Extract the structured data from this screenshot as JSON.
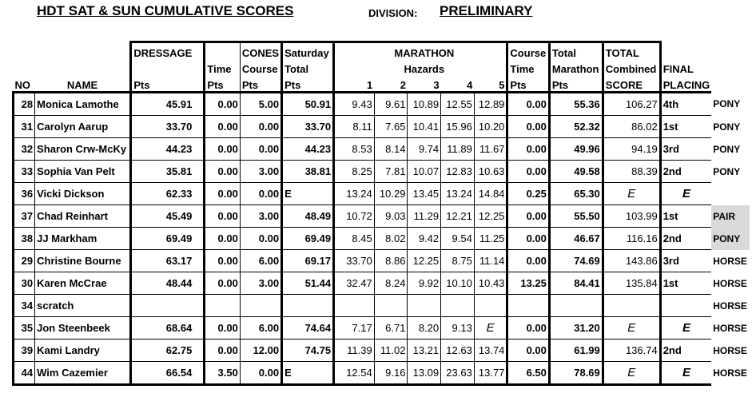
{
  "header": {
    "title": "HDT SAT & SUN  CUMULATIVE SCORES",
    "division_label": "DIVISION:",
    "division_value": "PRELIMINARY"
  },
  "columns": {
    "dressage_top": "DRESSAGE",
    "dressage_pts": "Pts",
    "time": "Time",
    "time_pts": "Pts",
    "cones_top": "CONES",
    "cones_course": "Course",
    "cones_pts": "Pts",
    "sat_1": "Saturday",
    "sat_2": "Total",
    "sat_pts": "Pts",
    "marathon": "MARATHON",
    "hazards": "Hazards",
    "h1": "1",
    "h2": "2",
    "h3": "3",
    "h4": "4",
    "h5": "5",
    "course_time_1": "Course",
    "course_time_2": "Time",
    "course_time_pts": "Pts",
    "total_marathon_1": "Total",
    "total_marathon_2": "Marathon",
    "total_marathon_pts": "Pts",
    "combined_1": "TOTAL",
    "combined_2": "Combined",
    "combined_3": "SCORE",
    "final_1": "FINAL",
    "final_2": "PLACING",
    "no": "NO",
    "name": "NAME"
  },
  "rows": [
    {
      "no": "28",
      "name": "Monica Lamothe",
      "dressage": "45.91",
      "time": "0.00",
      "cones": "5.00",
      "sat": "50.91",
      "h1": "9.43",
      "h2": "9.61",
      "h3": "10.89",
      "h4": "12.55",
      "h5": "12.89",
      "ctime": "0.00",
      "tmar": "55.36",
      "combined": "106.27",
      "placing": "4th",
      "type": "PONY"
    },
    {
      "no": "31",
      "name": "Carolyn Aarup",
      "dressage": "33.70",
      "time": "0.00",
      "cones": "0.00",
      "sat": "33.70",
      "h1": "8.11",
      "h2": "7.65",
      "h3": "10.41",
      "h4": "15.96",
      "h5": "10.20",
      "ctime": "0.00",
      "tmar": "52.32",
      "combined": "86.02",
      "placing": "1st",
      "type": "PONY"
    },
    {
      "no": "32",
      "name": "Sharon Crw-McKy",
      "dressage": "44.23",
      "time": "0.00",
      "cones": "0.00",
      "sat": "44.23",
      "h1": "8.53",
      "h2": "8.14",
      "h3": "9.74",
      "h4": "11.89",
      "h5": "11.67",
      "ctime": "0.00",
      "tmar": "49.96",
      "combined": "94.19",
      "placing": "3rd",
      "type": "PONY"
    },
    {
      "no": "33",
      "name": "Sophia Van Pelt",
      "dressage": "35.81",
      "time": "0.00",
      "cones": "3.00",
      "sat": "38.81",
      "h1": "8.25",
      "h2": "7.81",
      "h3": "10.07",
      "h4": "12.83",
      "h5": "10.63",
      "ctime": "0.00",
      "tmar": "49.58",
      "combined": "88.39",
      "placing": "2nd",
      "type": "PONY"
    },
    {
      "no": "36",
      "name": "Vicki Dickson",
      "dressage": "62.33",
      "time": "0.00",
      "cones": "0.00",
      "sat": "E",
      "h1": "13.24",
      "h2": "10.29",
      "h3": "13.45",
      "h4": "13.24",
      "h5": "14.84",
      "ctime": "0.25",
      "tmar": "65.30",
      "combined": "E",
      "placing": "E",
      "type": ""
    },
    {
      "no": "37",
      "name": "Chad Reinhart",
      "dressage": "45.49",
      "time": "0.00",
      "cones": "3.00",
      "sat": "48.49",
      "h1": "10.72",
      "h2": "9.03",
      "h3": "11.29",
      "h4": "12.21",
      "h5": "12.25",
      "ctime": "0.00",
      "tmar": "55.50",
      "combined": "103.99",
      "placing": "1st",
      "type": "PAIR"
    },
    {
      "no": "38",
      "name": "JJ Markham",
      "dressage": "69.49",
      "time": "0.00",
      "cones": "0.00",
      "sat": "69.49",
      "h1": "8.45",
      "h2": "8.02",
      "h3": "9.42",
      "h4": "9.54",
      "h5": "11.25",
      "ctime": "0.00",
      "tmar": "46.67",
      "combined": "116.16",
      "placing": "2nd",
      "type": "PONY"
    },
    {
      "no": "29",
      "name": "Christine Bourne",
      "dressage": "63.17",
      "time": "0.00",
      "cones": "6.00",
      "sat": "69.17",
      "h1": "33.70",
      "h2": "8.86",
      "h3": "12.25",
      "h4": "8.75",
      "h5": "11.14",
      "ctime": "0.00",
      "tmar": "74.69",
      "combined": "143.86",
      "placing": "3rd",
      "type": "HORSE"
    },
    {
      "no": "30",
      "name": "Karen McCrae",
      "dressage": "48.44",
      "time": "0.00",
      "cones": "3.00",
      "sat": "51.44",
      "h1": "32.47",
      "h2": "8.24",
      "h3": "9.92",
      "h4": "10.10",
      "h5": "10.43",
      "ctime": "13.25",
      "tmar": "84.41",
      "combined": "135.84",
      "placing": "1st",
      "type": "HORSE"
    },
    {
      "no": "34",
      "name": "scratch",
      "dressage": "",
      "time": "",
      "cones": "",
      "sat": "",
      "h1": "",
      "h2": "",
      "h3": "",
      "h4": "",
      "h5": "",
      "ctime": "",
      "tmar": "",
      "combined": "",
      "placing": "",
      "type": "HORSE"
    },
    {
      "no": "35",
      "name": "Jon Steenbeek",
      "dressage": "68.64",
      "time": "0.00",
      "cones": "6.00",
      "sat": "74.64",
      "h1": "7.17",
      "h2": "6.71",
      "h3": "8.20",
      "h4": "9.13",
      "h5": "E",
      "ctime": "0.00",
      "tmar": "31.20",
      "combined": "E",
      "placing": "E",
      "type": "HORSE"
    },
    {
      "no": "39",
      "name": "Kami Landry",
      "dressage": "62.75",
      "time": "0.00",
      "cones": "12.00",
      "sat": "74.75",
      "h1": "11.39",
      "h2": "11.02",
      "h3": "13.21",
      "h4": "12.63",
      "h5": "13.74",
      "ctime": "0.00",
      "tmar": "61.99",
      "combined": "136.74",
      "placing": "2nd",
      "type": "HORSE"
    },
    {
      "no": "44",
      "name": "Wim Cazemier",
      "dressage": "66.54",
      "time": "3.50",
      "cones": "0.00",
      "sat": "E",
      "h1": "12.54",
      "h2": "9.16",
      "h3": "13.09",
      "h4": "23.63",
      "h5": "13.77",
      "ctime": "6.50",
      "tmar": "78.69",
      "combined": "E",
      "placing": "E",
      "type": "HORSE"
    }
  ],
  "shaded_rows": [
    5,
    6
  ],
  "shade_color": "#d9d9d9"
}
